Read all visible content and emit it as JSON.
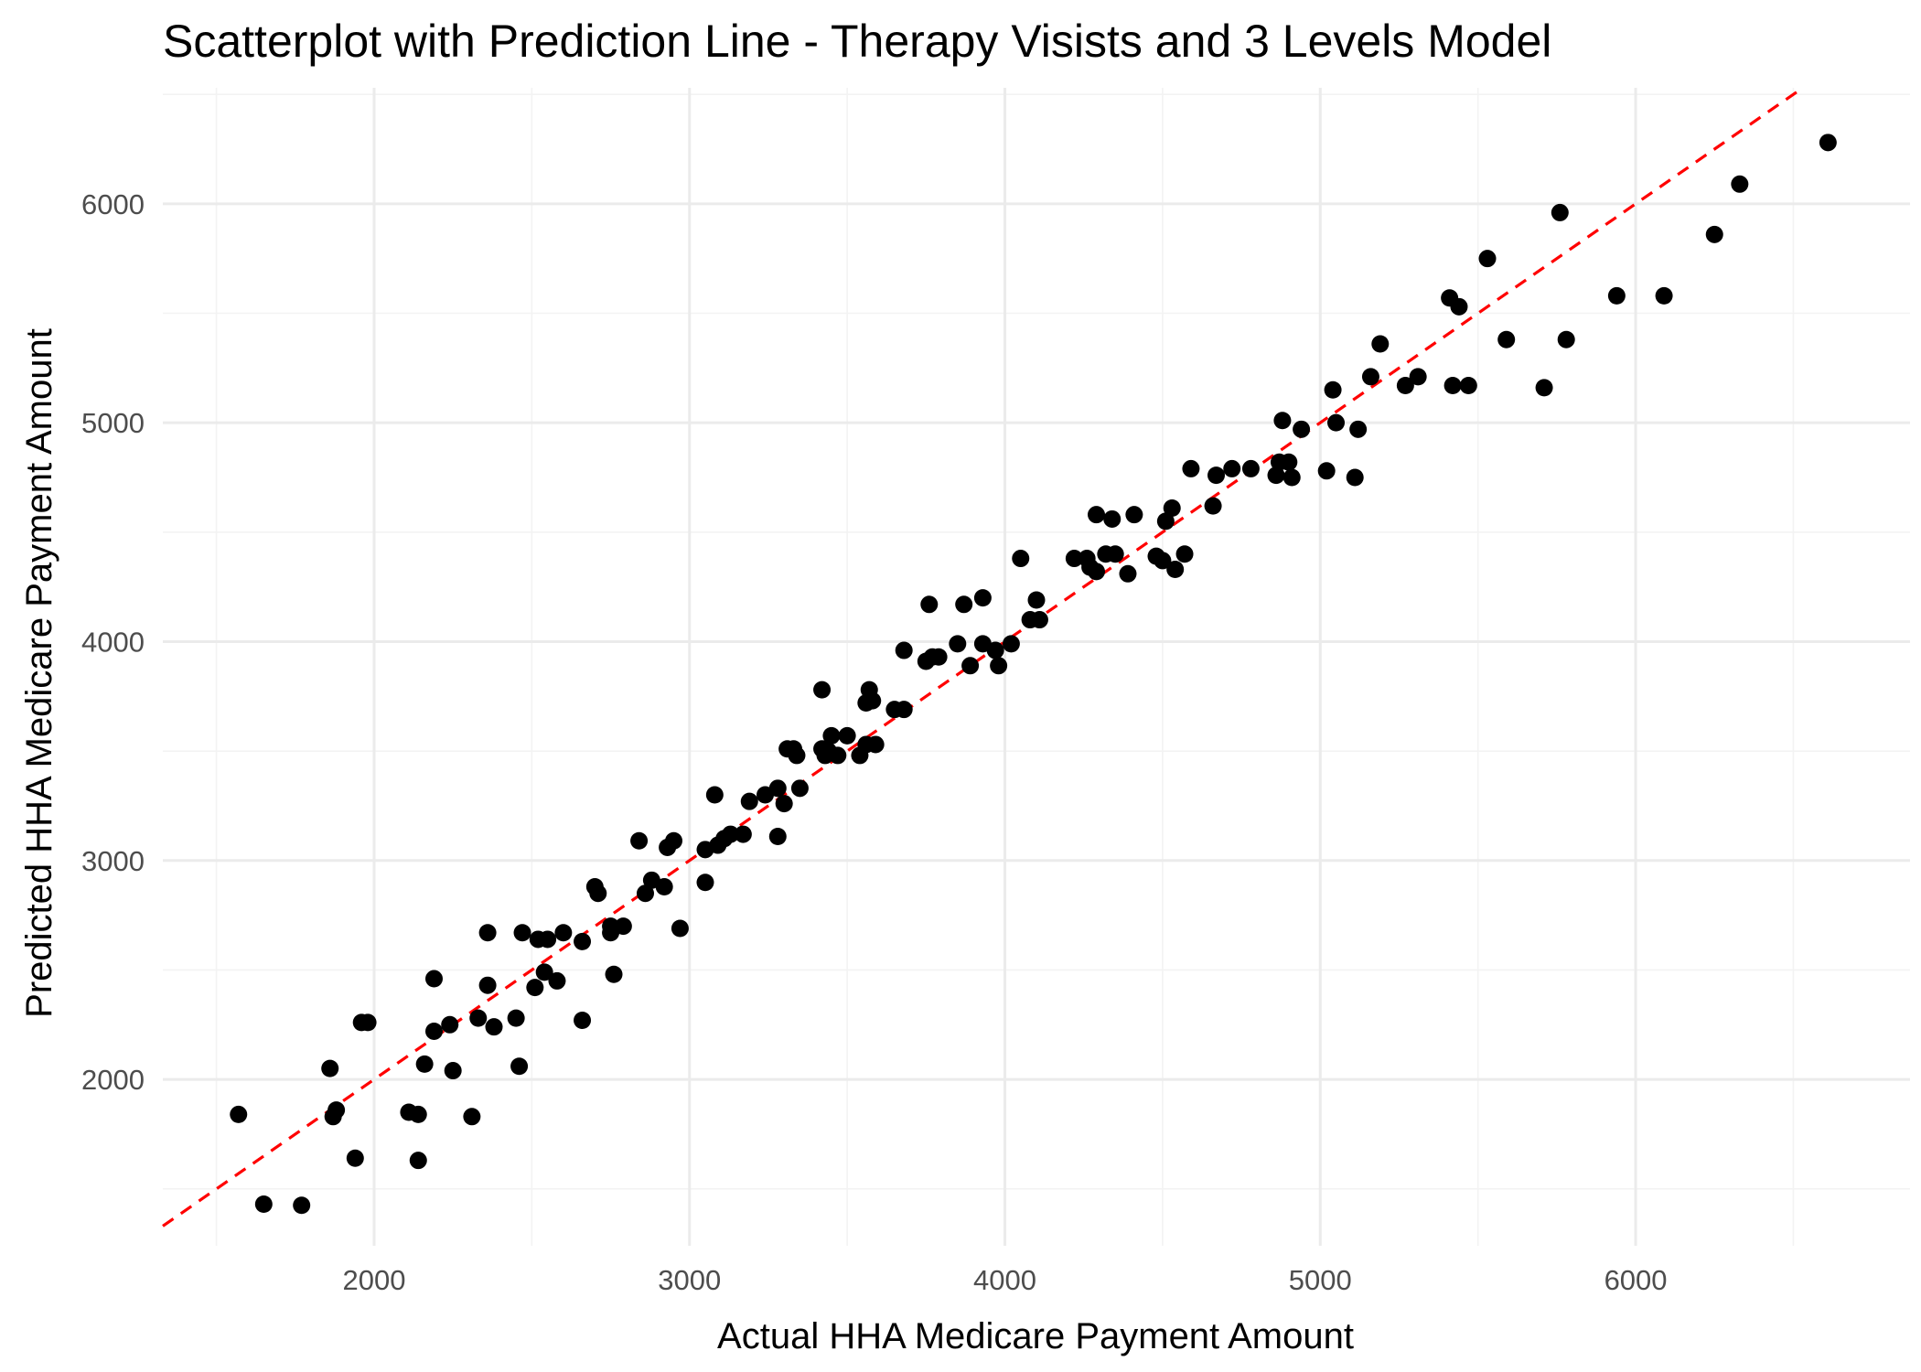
{
  "chart_data": {
    "type": "scatter",
    "title": "Scatterplot with Prediction Line - Therapy Visists and 3 Levels Model",
    "xlabel": "Actual HHA Medicare Payment Amount",
    "ylabel": "Predicted HHA Medicare Payment Amount",
    "xlim": [
      1330,
      6870
    ],
    "ylim": [
      1240,
      6530
    ],
    "x_ticks": [
      2000,
      3000,
      4000,
      5000,
      6000
    ],
    "y_ticks": [
      2000,
      3000,
      4000,
      5000,
      6000
    ],
    "x_minor_ticks": [
      1500,
      2500,
      3500,
      4500,
      5500,
      6500
    ],
    "y_minor_ticks": [
      1500,
      2500,
      3500,
      4500,
      5500,
      6500
    ],
    "grid": true,
    "prediction_line": {
      "type": "identity",
      "slope": 1,
      "intercept": 0,
      "color": "#ff0000",
      "style": "dashed"
    },
    "point_color": "#000000",
    "points": [
      [
        1570,
        1840
      ],
      [
        1650,
        1430
      ],
      [
        1770,
        1425
      ],
      [
        1860,
        2050
      ],
      [
        1870,
        1830
      ],
      [
        1880,
        1860
      ],
      [
        1940,
        1640
      ],
      [
        1960,
        2260
      ],
      [
        1980,
        2260
      ],
      [
        2110,
        1850
      ],
      [
        2140,
        1840
      ],
      [
        2140,
        1630
      ],
      [
        2160,
        2070
      ],
      [
        2190,
        2460
      ],
      [
        2190,
        2220
      ],
      [
        2240,
        2250
      ],
      [
        2250,
        2040
      ],
      [
        2310,
        1830
      ],
      [
        2330,
        2280
      ],
      [
        2360,
        2670
      ],
      [
        2360,
        2430
      ],
      [
        2380,
        2240
      ],
      [
        2450,
        2280
      ],
      [
        2460,
        2060
      ],
      [
        2470,
        2670
      ],
      [
        2510,
        2420
      ],
      [
        2520,
        2640
      ],
      [
        2550,
        2640
      ],
      [
        2540,
        2490
      ],
      [
        2580,
        2450
      ],
      [
        2600,
        2670
      ],
      [
        2660,
        2270
      ],
      [
        2660,
        2630
      ],
      [
        2700,
        2880
      ],
      [
        2710,
        2850
      ],
      [
        2750,
        2670
      ],
      [
        2750,
        2700
      ],
      [
        2760,
        2480
      ],
      [
        2790,
        2700
      ],
      [
        2840,
        3090
      ],
      [
        2860,
        2850
      ],
      [
        2880,
        2910
      ],
      [
        2920,
        2880
      ],
      [
        2930,
        3060
      ],
      [
        2950,
        3090
      ],
      [
        2970,
        2690
      ],
      [
        3050,
        3050
      ],
      [
        3050,
        2900
      ],
      [
        3080,
        3300
      ],
      [
        3090,
        3070
      ],
      [
        3110,
        3100
      ],
      [
        3130,
        3120
      ],
      [
        3170,
        3120
      ],
      [
        3190,
        3270
      ],
      [
        3240,
        3300
      ],
      [
        3280,
        3110
      ],
      [
        3280,
        3330
      ],
      [
        3300,
        3260
      ],
      [
        3310,
        3510
      ],
      [
        3330,
        3510
      ],
      [
        3340,
        3480
      ],
      [
        3350,
        3330
      ],
      [
        3420,
        3780
      ],
      [
        3420,
        3510
      ],
      [
        3430,
        3480
      ],
      [
        3440,
        3500
      ],
      [
        3450,
        3570
      ],
      [
        3470,
        3480
      ],
      [
        3500,
        3570
      ],
      [
        3540,
        3480
      ],
      [
        3560,
        3530
      ],
      [
        3560,
        3720
      ],
      [
        3570,
        3780
      ],
      [
        3580,
        3730
      ],
      [
        3590,
        3530
      ],
      [
        3650,
        3690
      ],
      [
        3680,
        3960
      ],
      [
        3680,
        3690
      ],
      [
        3750,
        3910
      ],
      [
        3760,
        4170
      ],
      [
        3770,
        3930
      ],
      [
        3790,
        3930
      ],
      [
        3850,
        3990
      ],
      [
        3870,
        4170
      ],
      [
        3890,
        3890
      ],
      [
        3930,
        4200
      ],
      [
        3930,
        3990
      ],
      [
        3970,
        3960
      ],
      [
        3980,
        3890
      ],
      [
        4020,
        3990
      ],
      [
        4050,
        4380
      ],
      [
        4080,
        4100
      ],
      [
        4100,
        4190
      ],
      [
        4110,
        4100
      ],
      [
        4220,
        4380
      ],
      [
        4260,
        4380
      ],
      [
        4270,
        4340
      ],
      [
        4290,
        4320
      ],
      [
        4290,
        4580
      ],
      [
        4320,
        4400
      ],
      [
        4340,
        4560
      ],
      [
        4350,
        4400
      ],
      [
        4390,
        4310
      ],
      [
        4410,
        4580
      ],
      [
        4480,
        4390
      ],
      [
        4500,
        4370
      ],
      [
        4510,
        4550
      ],
      [
        4530,
        4610
      ],
      [
        4540,
        4330
      ],
      [
        4570,
        4400
      ],
      [
        4590,
        4790
      ],
      [
        4660,
        4620
      ],
      [
        4670,
        4760
      ],
      [
        4720,
        4790
      ],
      [
        4780,
        4790
      ],
      [
        4860,
        4760
      ],
      [
        4870,
        4820
      ],
      [
        4880,
        5010
      ],
      [
        4900,
        4820
      ],
      [
        4910,
        4750
      ],
      [
        4940,
        4970
      ],
      [
        5020,
        4780
      ],
      [
        5040,
        5150
      ],
      [
        5050,
        5000
      ],
      [
        5110,
        4750
      ],
      [
        5120,
        4970
      ],
      [
        5160,
        5210
      ],
      [
        5190,
        5360
      ],
      [
        5270,
        5170
      ],
      [
        5310,
        5210
      ],
      [
        5410,
        5570
      ],
      [
        5420,
        5170
      ],
      [
        5440,
        5530
      ],
      [
        5470,
        5170
      ],
      [
        5530,
        5750
      ],
      [
        5590,
        5380
      ],
      [
        5710,
        5160
      ],
      [
        5760,
        5960
      ],
      [
        5780,
        5380
      ],
      [
        5940,
        5580
      ],
      [
        6090,
        5580
      ],
      [
        6250,
        5860
      ],
      [
        6330,
        6090
      ],
      [
        6610,
        6280
      ]
    ]
  }
}
